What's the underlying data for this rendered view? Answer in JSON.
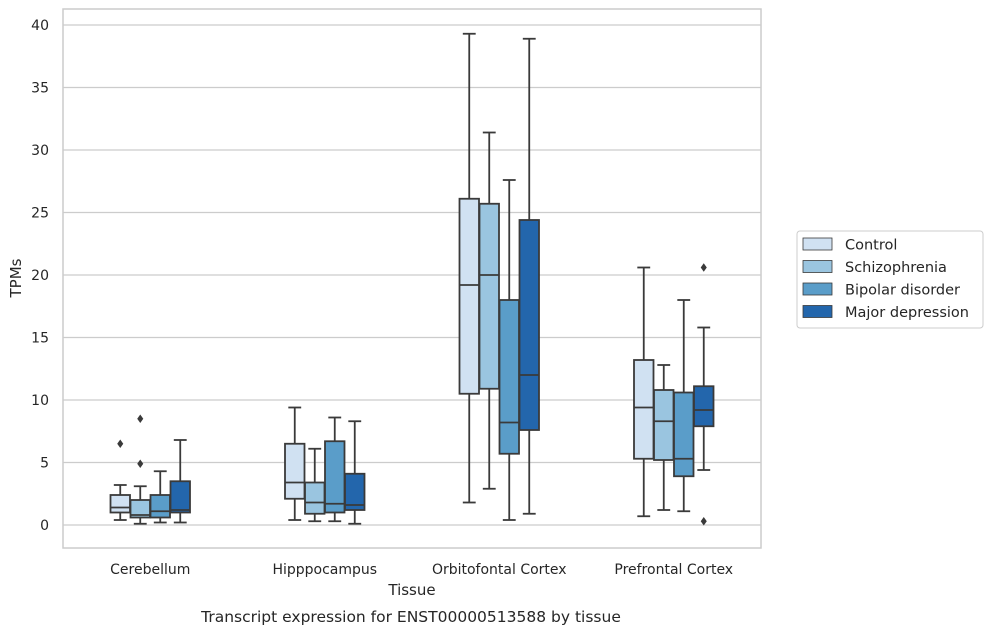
{
  "chart_data": {
    "type": "box",
    "xlabel": "Tissue",
    "ylabel": "TPMs",
    "caption": "Transcript expression for ENST00000513588 by tissue",
    "categories": [
      "Cerebellum",
      "Hipppocampus",
      "Orbitofontal Cortex",
      "Prefrontal Cortex"
    ],
    "ylim": [
      -1.8,
      41.2
    ],
    "yticks": [
      0,
      5,
      10,
      15,
      20,
      25,
      30,
      35,
      40
    ],
    "grid": "horizontal",
    "legend_position": "right",
    "series": [
      {
        "name": "Control",
        "color": "#d0e1f2",
        "boxes": [
          {
            "whislo": 0.4,
            "q1": 1.0,
            "med": 1.4,
            "q3": 2.4,
            "whishi": 3.2,
            "fliers": [
              6.5
            ]
          },
          {
            "whislo": 0.4,
            "q1": 2.1,
            "med": 3.4,
            "q3": 6.5,
            "whishi": 9.4,
            "fliers": []
          },
          {
            "whislo": 1.8,
            "q1": 10.5,
            "med": 19.2,
            "q3": 26.1,
            "whishi": 39.3,
            "fliers": []
          },
          {
            "whislo": 0.7,
            "q1": 5.3,
            "med": 9.4,
            "q3": 13.2,
            "whishi": 20.6,
            "fliers": []
          }
        ]
      },
      {
        "name": "Schizophrenia",
        "color": "#9ac5e0",
        "boxes": [
          {
            "whislo": 0.1,
            "q1": 0.6,
            "med": 0.8,
            "q3": 2.0,
            "whishi": 3.1,
            "fliers": [
              4.9,
              8.5
            ]
          },
          {
            "whislo": 0.3,
            "q1": 0.9,
            "med": 1.8,
            "q3": 3.4,
            "whishi": 6.1,
            "fliers": []
          },
          {
            "whislo": 2.9,
            "q1": 10.9,
            "med": 20.0,
            "q3": 25.7,
            "whishi": 31.4,
            "fliers": []
          },
          {
            "whislo": 1.2,
            "q1": 5.2,
            "med": 8.3,
            "q3": 10.8,
            "whishi": 12.8,
            "fliers": []
          }
        ]
      },
      {
        "name": "Bipolar disorder",
        "color": "#5a9dc9",
        "boxes": [
          {
            "whislo": 0.2,
            "q1": 0.6,
            "med": 1.1,
            "q3": 2.4,
            "whishi": 4.3,
            "fliers": []
          },
          {
            "whislo": 0.3,
            "q1": 1.0,
            "med": 1.7,
            "q3": 6.7,
            "whishi": 8.6,
            "fliers": []
          },
          {
            "whislo": 0.4,
            "q1": 5.7,
            "med": 8.2,
            "q3": 18.0,
            "whishi": 27.6,
            "fliers": []
          },
          {
            "whislo": 1.1,
            "q1": 3.9,
            "med": 5.3,
            "q3": 10.6,
            "whishi": 18.0,
            "fliers": []
          }
        ]
      },
      {
        "name": "Major depression",
        "color": "#2366ac",
        "boxes": [
          {
            "whislo": 0.2,
            "q1": 1.0,
            "med": 1.2,
            "q3": 3.5,
            "whishi": 6.8,
            "fliers": []
          },
          {
            "whislo": 0.1,
            "q1": 1.2,
            "med": 1.6,
            "q3": 4.1,
            "whishi": 8.3,
            "fliers": []
          },
          {
            "whislo": 0.9,
            "q1": 7.6,
            "med": 12.0,
            "q3": 24.4,
            "whishi": 38.9,
            "fliers": []
          },
          {
            "whislo": 4.4,
            "q1": 7.9,
            "med": 9.2,
            "q3": 11.1,
            "whishi": 15.8,
            "fliers": [
              0.3,
              20.6
            ]
          }
        ]
      }
    ]
  }
}
